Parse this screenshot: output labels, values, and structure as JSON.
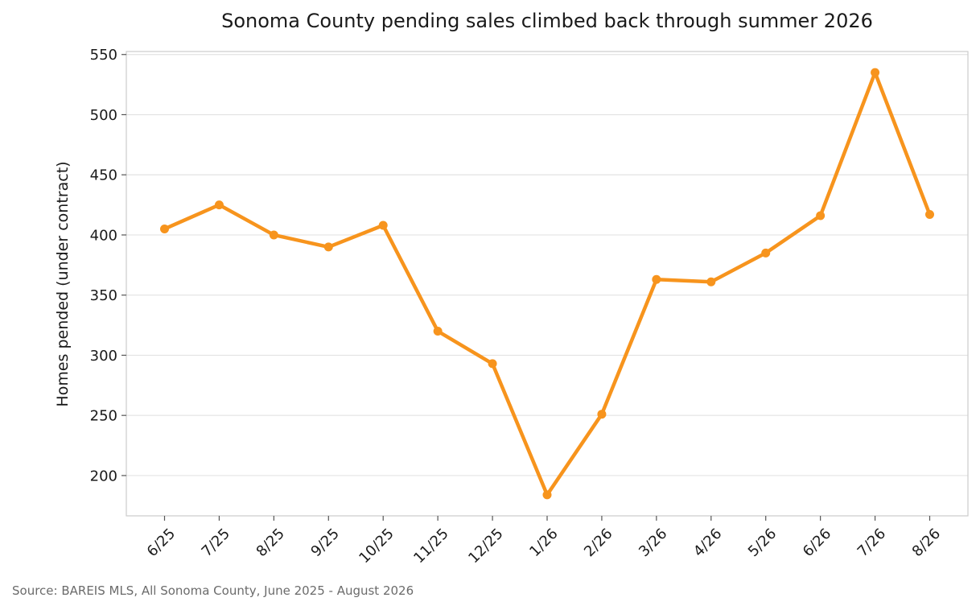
{
  "chart_data": {
    "type": "line",
    "title": "Sonoma County pending sales climbed back through summer 2026",
    "xlabel": "",
    "ylabel": "Homes pended (under contract)",
    "categories": [
      "6/25",
      "7/25",
      "8/25",
      "9/25",
      "10/25",
      "11/25",
      "12/25",
      "1/26",
      "2/26",
      "3/26",
      "4/26",
      "5/26",
      "6/26",
      "7/26",
      "8/26"
    ],
    "series": [
      {
        "values": [
          405,
          425,
          400,
          390,
          408,
          320,
          293,
          184,
          251,
          363,
          361,
          385,
          416,
          535,
          417
        ]
      }
    ],
    "ylim": [
      166.5,
      552.5
    ],
    "yticks": [
      200,
      250,
      300,
      350,
      400,
      450,
      500,
      550
    ],
    "grid": "horizontal",
    "legend": "none",
    "line_color": "#f7941d",
    "source": "Source: BAREIS MLS, All Sonoma County, June 2025 - August 2026"
  }
}
